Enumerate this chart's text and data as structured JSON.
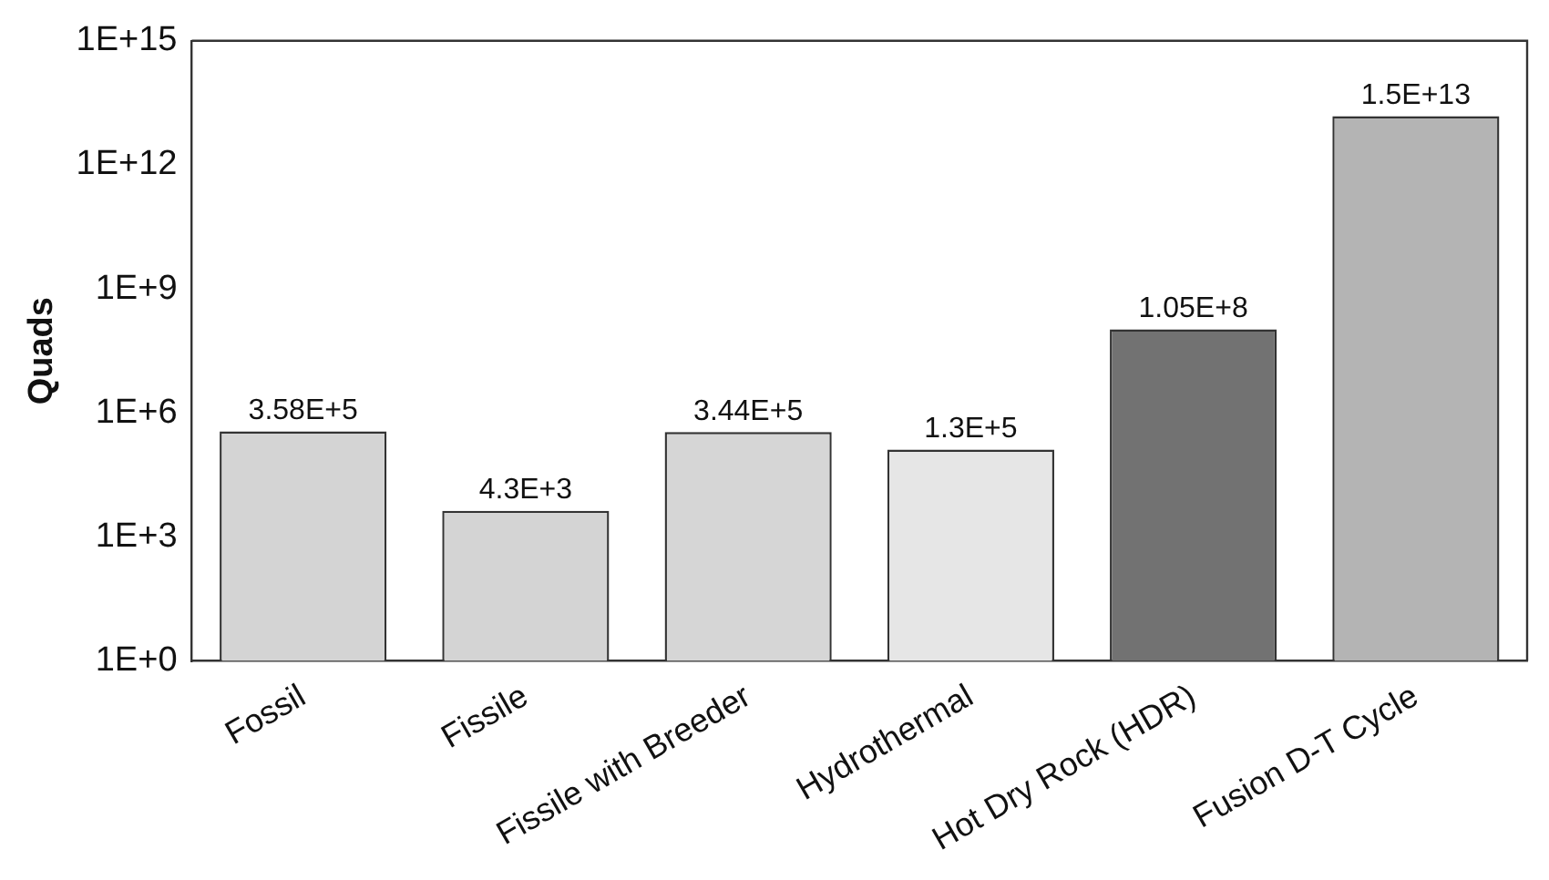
{
  "chart_data": {
    "type": "bar",
    "ylabel": "Quads",
    "categories": [
      "Fossil",
      "Fissile",
      "Fissile with Breeder",
      "Hydrothermal",
      "Hot Dry Rock (HDR)",
      "Fusion D-T Cycle"
    ],
    "values": [
      358000,
      4300,
      344000,
      130000,
      105000000,
      15000000000000
    ],
    "colors": [
      "#d4d4d4",
      "#d4d4d4",
      "#d6d6d6",
      "#e6e6e6",
      "#727272",
      "#b4b4b4"
    ],
    "value_labels": [
      "3.58E+5",
      "4.3E+3",
      "3.44E+5",
      "1.3E+5",
      "1.05E+8",
      "1.5E+13"
    ],
    "log": "y",
    "ylim": [
      1,
      1000000000000000
    ],
    "yticks": [
      {
        "value": 1,
        "label": "1E+0"
      },
      {
        "value": 1000,
        "label": "1E+3"
      },
      {
        "value": 1000000,
        "label": "1E+6"
      },
      {
        "value": 1000000000,
        "label": "1E+9"
      },
      {
        "value": 1000000000000,
        "label": "1E+12"
      },
      {
        "value": 1000000000000000,
        "label": "1E+15"
      }
    ],
    "grid": false,
    "legend": false
  }
}
